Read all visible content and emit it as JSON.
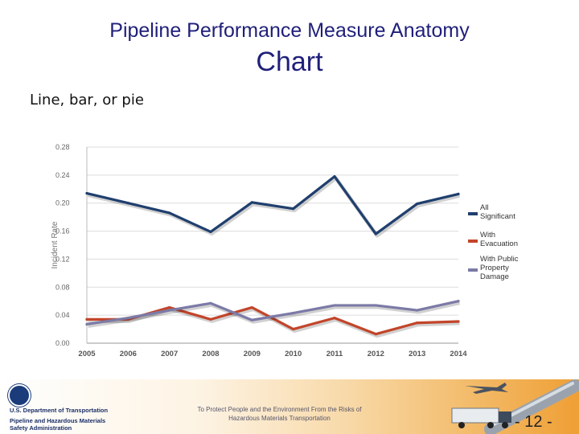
{
  "slide": {
    "title": "Pipeline Performance Measure Anatomy",
    "subtitle": "Chart",
    "bullet": "Line, bar, or pie",
    "page_number": "- 12 -"
  },
  "footer": {
    "agency_line1": "U.S. Department of Transportation",
    "agency_line2": "Pipeline and Hazardous Materials",
    "agency_line3": "Safety Administration",
    "mission_line1": "To Protect People and the Environment From the Risks of",
    "mission_line2": "Hazardous Materials Transportation"
  },
  "chart_data": {
    "type": "line",
    "title": "",
    "xlabel": "",
    "ylabel": "Incident Rate",
    "x": [
      "2005",
      "2006",
      "2007",
      "2008",
      "2009",
      "2010",
      "2011",
      "2012",
      "2013",
      "2014"
    ],
    "ylim": [
      0,
      0.28
    ],
    "yticks": [
      "0.00",
      "0.04",
      "0.08",
      "0.12",
      "0.16",
      "0.20",
      "0.24",
      "0.28"
    ],
    "grid": true,
    "legend_position": "right",
    "series": [
      {
        "name": "All Significant",
        "legend_lines": [
          "All",
          "Significant"
        ],
        "color": "#1f3f6e",
        "values": [
          0.214,
          0.2,
          0.186,
          0.159,
          0.201,
          0.192,
          0.238,
          0.156,
          0.199,
          0.213
        ]
      },
      {
        "name": "With Evacuation",
        "legend_lines": [
          "With",
          "Evacuation"
        ],
        "color": "#c2452a",
        "values": [
          0.034,
          0.034,
          0.051,
          0.034,
          0.051,
          0.02,
          0.036,
          0.013,
          0.029,
          0.031
        ]
      },
      {
        "name": "With Public Property Damage",
        "legend_lines": [
          "With Public",
          "Property",
          "Damage"
        ],
        "color": "#7c7aa6",
        "values": [
          0.027,
          0.036,
          0.047,
          0.057,
          0.033,
          0.043,
          0.054,
          0.054,
          0.047,
          0.06
        ]
      }
    ]
  }
}
